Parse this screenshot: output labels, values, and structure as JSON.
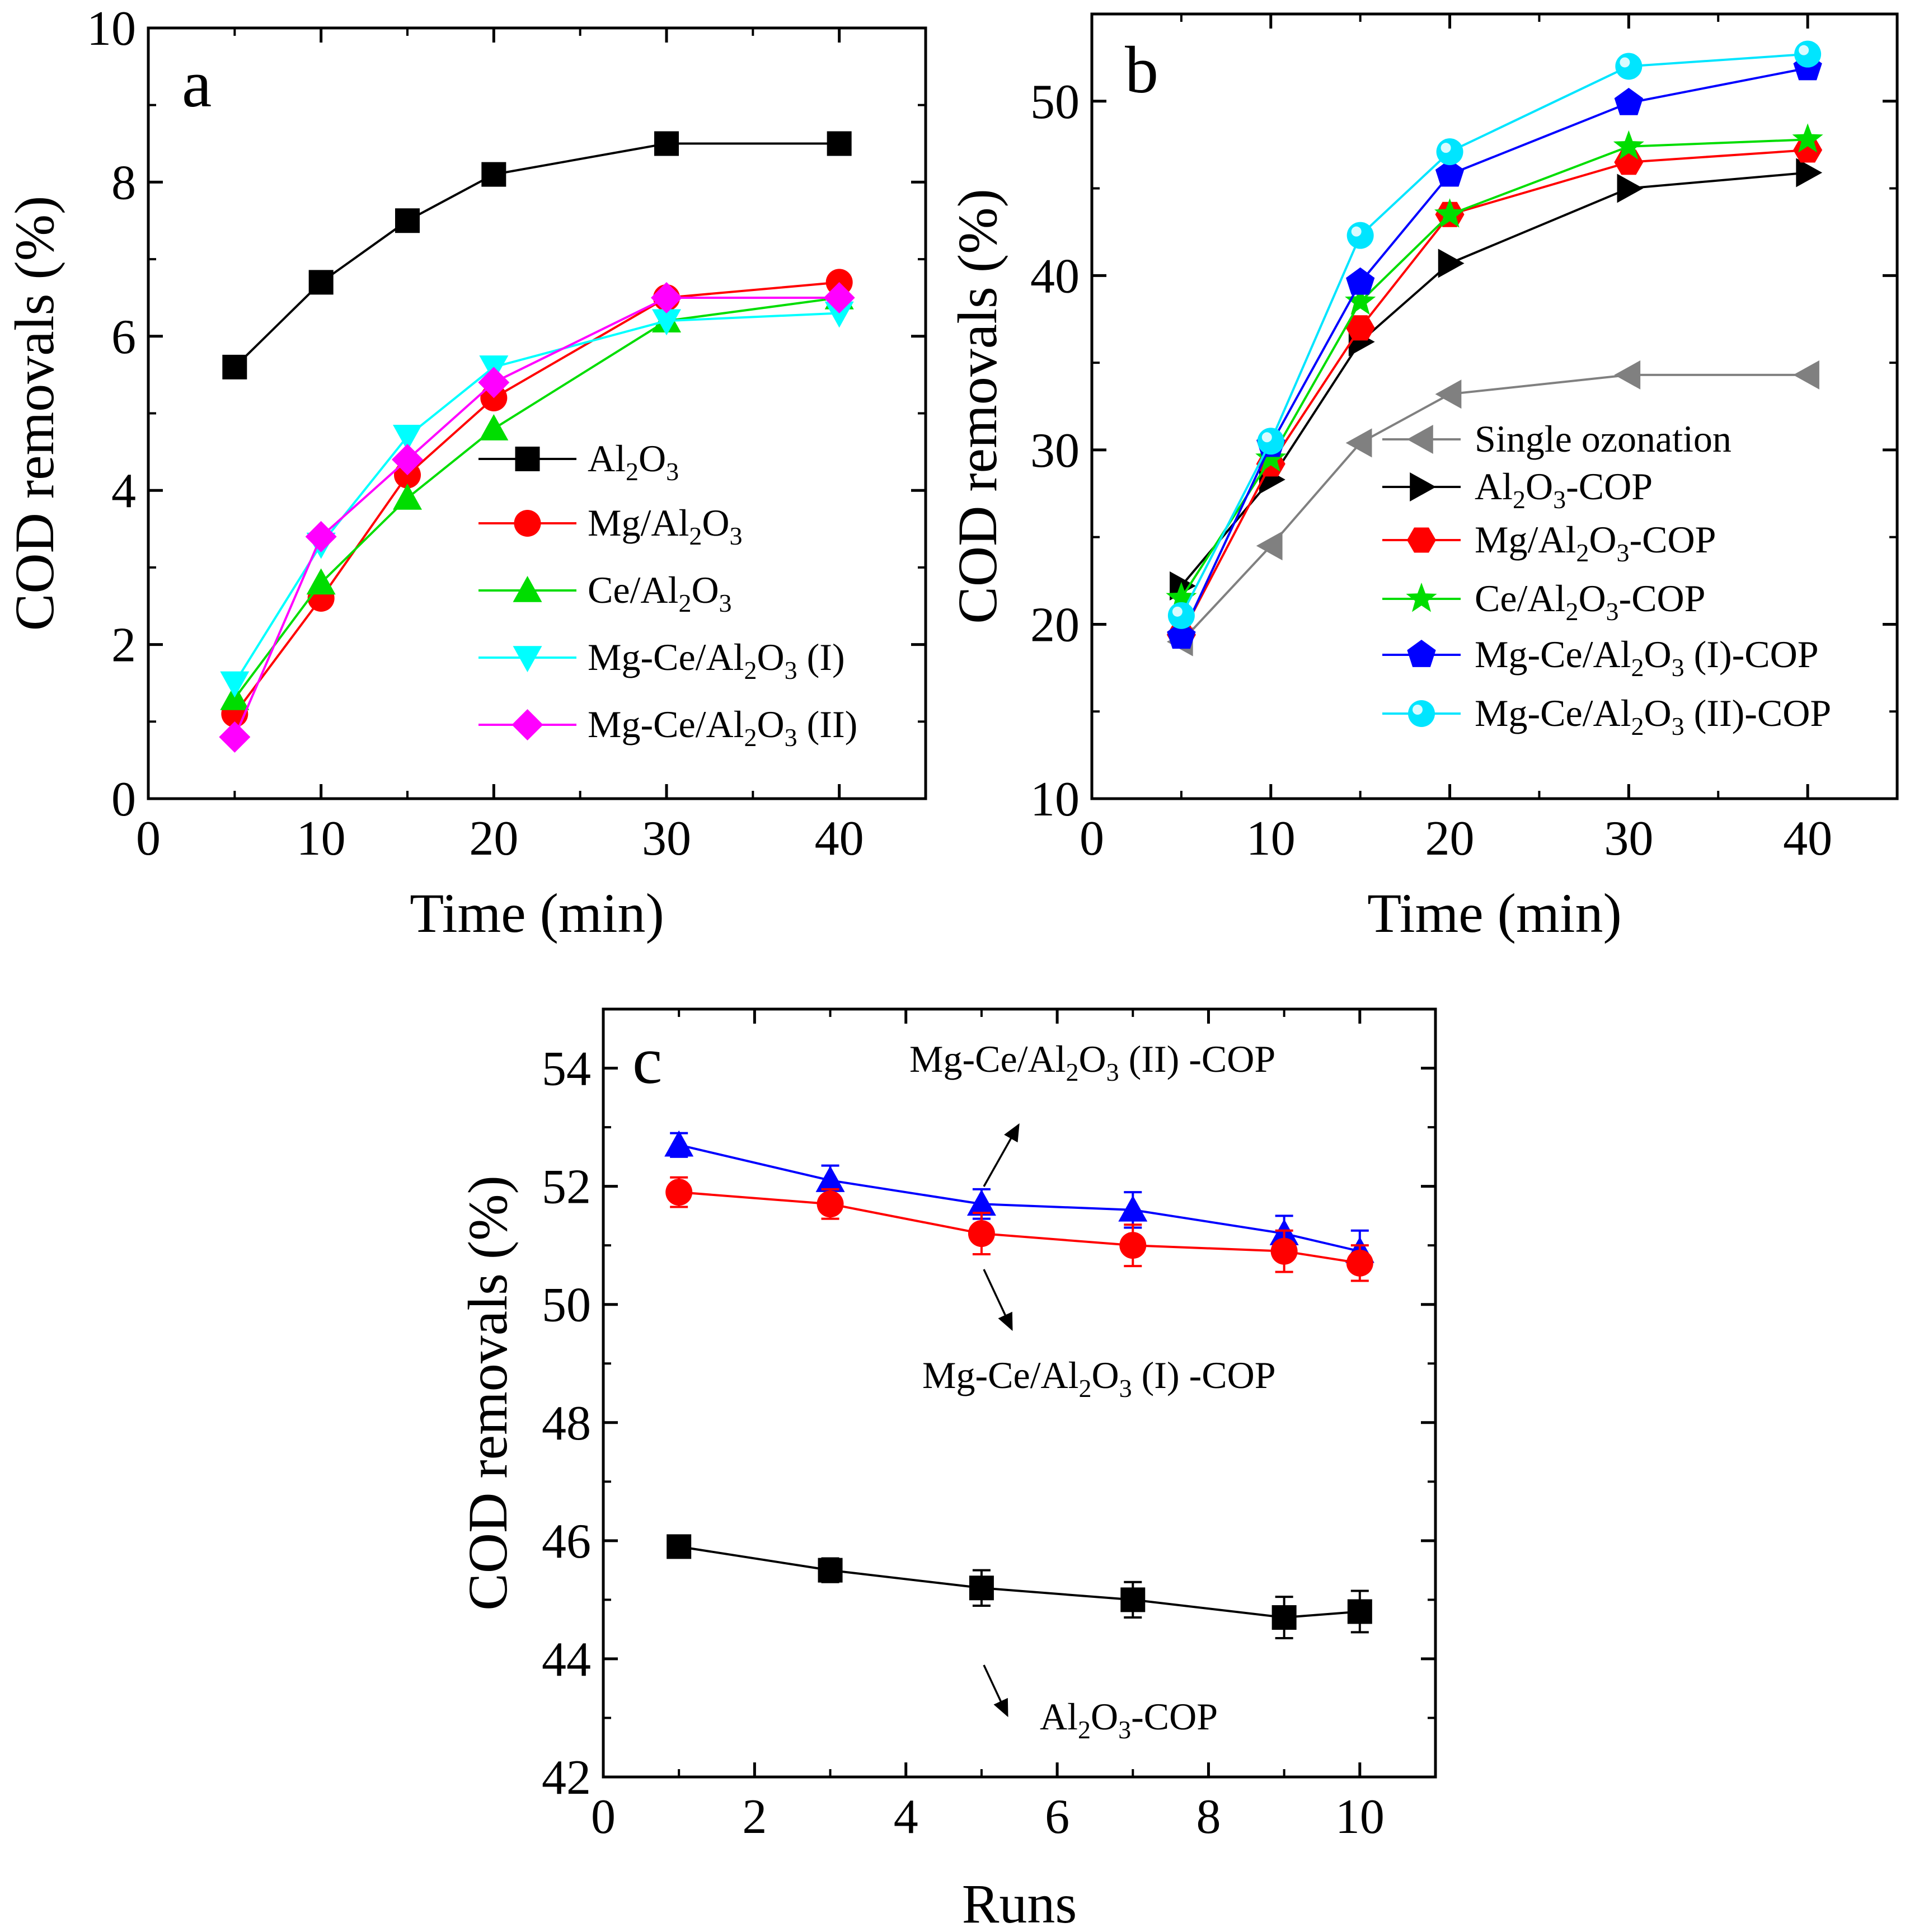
{
  "chart_data": [
    {
      "panel": "a",
      "type": "line",
      "xlabel": "Time (min)",
      "ylabel": "COD removals (%)",
      "xlim": [
        0,
        45
      ],
      "ylim": [
        0,
        10
      ],
      "xticks": [
        0,
        10,
        20,
        30,
        40
      ],
      "yticks": [
        0,
        2,
        4,
        6,
        8,
        10
      ],
      "legend_position": "right-center",
      "x": [
        5,
        10,
        15,
        20,
        30,
        40
      ],
      "series": [
        {
          "name": "Al2O3",
          "label_parts": [
            [
              "Al",
              ""
            ],
            [
              "2",
              "sub"
            ],
            [
              "O",
              ""
            ],
            [
              "3",
              "sub"
            ]
          ],
          "color": "#000000",
          "marker": "square",
          "values": [
            5.6,
            6.7,
            7.5,
            8.1,
            8.5,
            8.5
          ]
        },
        {
          "name": "Mg/Al2O3",
          "label_parts": [
            [
              "Mg/Al",
              ""
            ],
            [
              "2",
              "sub"
            ],
            [
              "O",
              ""
            ],
            [
              "3",
              "sub"
            ]
          ],
          "color": "#ff0000",
          "marker": "circle",
          "values": [
            1.1,
            2.6,
            4.2,
            5.2,
            6.5,
            6.7
          ]
        },
        {
          "name": "Ce/Al2O3",
          "label_parts": [
            [
              "Ce/Al",
              ""
            ],
            [
              "2",
              "sub"
            ],
            [
              "O",
              ""
            ],
            [
              "3",
              "sub"
            ]
          ],
          "color": "#00dd00",
          "marker": "triangle-up",
          "values": [
            1.3,
            2.8,
            3.9,
            4.8,
            6.2,
            6.5
          ]
        },
        {
          "name": "Mg-Ce/Al2O3 (I)",
          "label_parts": [
            [
              "Mg-Ce/Al",
              ""
            ],
            [
              "2",
              "sub"
            ],
            [
              "O",
              ""
            ],
            [
              "3",
              "sub"
            ],
            [
              " (I)",
              ""
            ]
          ],
          "color": "#00ffff",
          "marker": "triangle-down",
          "values": [
            1.5,
            3.3,
            4.7,
            5.6,
            6.2,
            6.3
          ]
        },
        {
          "name": "Mg-Ce/Al2O3 (II)",
          "label_parts": [
            [
              "Mg-Ce/Al",
              ""
            ],
            [
              "2",
              "sub"
            ],
            [
              "O",
              ""
            ],
            [
              "3",
              "sub"
            ],
            [
              " (II)",
              ""
            ]
          ],
          "color": "#ff00ff",
          "marker": "diamond",
          "values": [
            0.8,
            3.4,
            4.4,
            5.4,
            6.5,
            6.5
          ]
        }
      ]
    },
    {
      "panel": "b",
      "type": "line",
      "xlabel": "Time (min)",
      "ylabel": "COD removals (%)",
      "xlim": [
        0,
        45
      ],
      "ylim": [
        10,
        55
      ],
      "xticks": [
        0,
        10,
        20,
        30,
        40
      ],
      "yticks": [
        10,
        20,
        30,
        40,
        50
      ],
      "legend_position": "bottom-right",
      "x": [
        5,
        10,
        15,
        20,
        30,
        40
      ],
      "series": [
        {
          "name": "Single ozonation",
          "label_parts": [
            [
              "Single ozonation",
              ""
            ]
          ],
          "color": "#808080",
          "marker": "triangle-left",
          "values": [
            19.0,
            24.5,
            30.4,
            33.2,
            34.3,
            34.3
          ]
        },
        {
          "name": "Al2O3-COP",
          "label_parts": [
            [
              "Al",
              ""
            ],
            [
              "2",
              "sub"
            ],
            [
              "O",
              ""
            ],
            [
              "3",
              "sub"
            ],
            [
              "-COP",
              ""
            ]
          ],
          "color": "#000000",
          "marker": "triangle-right",
          "values": [
            22.2,
            28.3,
            36.2,
            40.7,
            45.0,
            45.9
          ]
        },
        {
          "name": "Mg/Al2O3-COP",
          "label_parts": [
            [
              "Mg/Al",
              ""
            ],
            [
              "2",
              "sub"
            ],
            [
              "O",
              ""
            ],
            [
              "3",
              "sub"
            ],
            [
              "-COP",
              ""
            ]
          ],
          "color": "#ff0000",
          "marker": "hexagon",
          "values": [
            19.4,
            29.2,
            37.0,
            43.5,
            46.5,
            47.2
          ]
        },
        {
          "name": "Ce/Al2O3-COP",
          "label_parts": [
            [
              "Ce/Al",
              ""
            ],
            [
              "2",
              "sub"
            ],
            [
              "O",
              ""
            ],
            [
              "3",
              "sub"
            ],
            [
              "-COP",
              ""
            ]
          ],
          "color": "#00dd00",
          "marker": "star",
          "values": [
            21.5,
            29.5,
            38.5,
            43.5,
            47.4,
            47.8
          ]
        },
        {
          "name": "Mg-Ce/Al2O3 (I)-COP",
          "label_parts": [
            [
              "Mg-Ce/Al",
              ""
            ],
            [
              "2",
              "sub"
            ],
            [
              "O",
              ""
            ],
            [
              "3",
              "sub"
            ],
            [
              " (I)-COP",
              ""
            ]
          ],
          "color": "#0000ff",
          "marker": "pentagon",
          "values": [
            19.3,
            30.3,
            39.6,
            45.8,
            49.9,
            51.9
          ]
        },
        {
          "name": "Mg-Ce/Al2O3 (II)-COP",
          "label_parts": [
            [
              "Mg-Ce/Al",
              ""
            ],
            [
              "2",
              "sub"
            ],
            [
              "O",
              ""
            ],
            [
              "3",
              "sub"
            ],
            [
              " (II)-COP",
              ""
            ]
          ],
          "color": "#00e5ff",
          "marker": "ring",
          "values": [
            20.5,
            30.5,
            42.3,
            47.1,
            52.0,
            52.7
          ]
        }
      ]
    },
    {
      "panel": "c",
      "type": "line",
      "xlabel": "Runs",
      "ylabel": "COD removals (%)",
      "xlim": [
        0,
        11
      ],
      "ylim": [
        42,
        55
      ],
      "xticks": [
        0,
        2,
        4,
        6,
        8,
        10
      ],
      "yticks": [
        42,
        44,
        46,
        48,
        50,
        52,
        54
      ],
      "error_bars": true,
      "x": [
        1,
        3,
        5,
        7,
        9,
        10
      ],
      "series": [
        {
          "name": "Mg-Ce/Al2O3 (II) -COP",
          "label_parts": [
            [
              "Mg-Ce/Al",
              ""
            ],
            [
              "2",
              "sub"
            ],
            [
              "O",
              ""
            ],
            [
              "3",
              "sub"
            ],
            [
              " (II) -COP",
              ""
            ]
          ],
          "color": "#0000ff",
          "marker": "triangle-up",
          "values": [
            52.7,
            52.1,
            51.7,
            51.6,
            51.2,
            50.9
          ],
          "errors": [
            0.2,
            0.25,
            0.25,
            0.3,
            0.3,
            0.35
          ]
        },
        {
          "name": "Mg-Ce/Al2O3 (I) -COP",
          "label_parts": [
            [
              "Mg-Ce/Al",
              ""
            ],
            [
              "2",
              "sub"
            ],
            [
              "O",
              ""
            ],
            [
              "3",
              "sub"
            ],
            [
              " (I) -COP",
              ""
            ]
          ],
          "color": "#ff0000",
          "marker": "circle",
          "values": [
            51.9,
            51.7,
            51.2,
            51.0,
            50.9,
            50.7
          ],
          "errors": [
            0.25,
            0.25,
            0.35,
            0.35,
            0.35,
            0.3
          ]
        },
        {
          "name": "Al2O3-COP",
          "label_parts": [
            [
              "Al",
              ""
            ],
            [
              "2",
              "sub"
            ],
            [
              "O",
              ""
            ],
            [
              "3",
              "sub"
            ],
            [
              "-COP",
              ""
            ]
          ],
          "color": "#000000",
          "marker": "square",
          "values": [
            45.9,
            45.5,
            45.2,
            45.0,
            44.7,
            44.8
          ],
          "errors": [
            0.15,
            0.2,
            0.3,
            0.3,
            0.35,
            0.35
          ]
        }
      ]
    }
  ]
}
